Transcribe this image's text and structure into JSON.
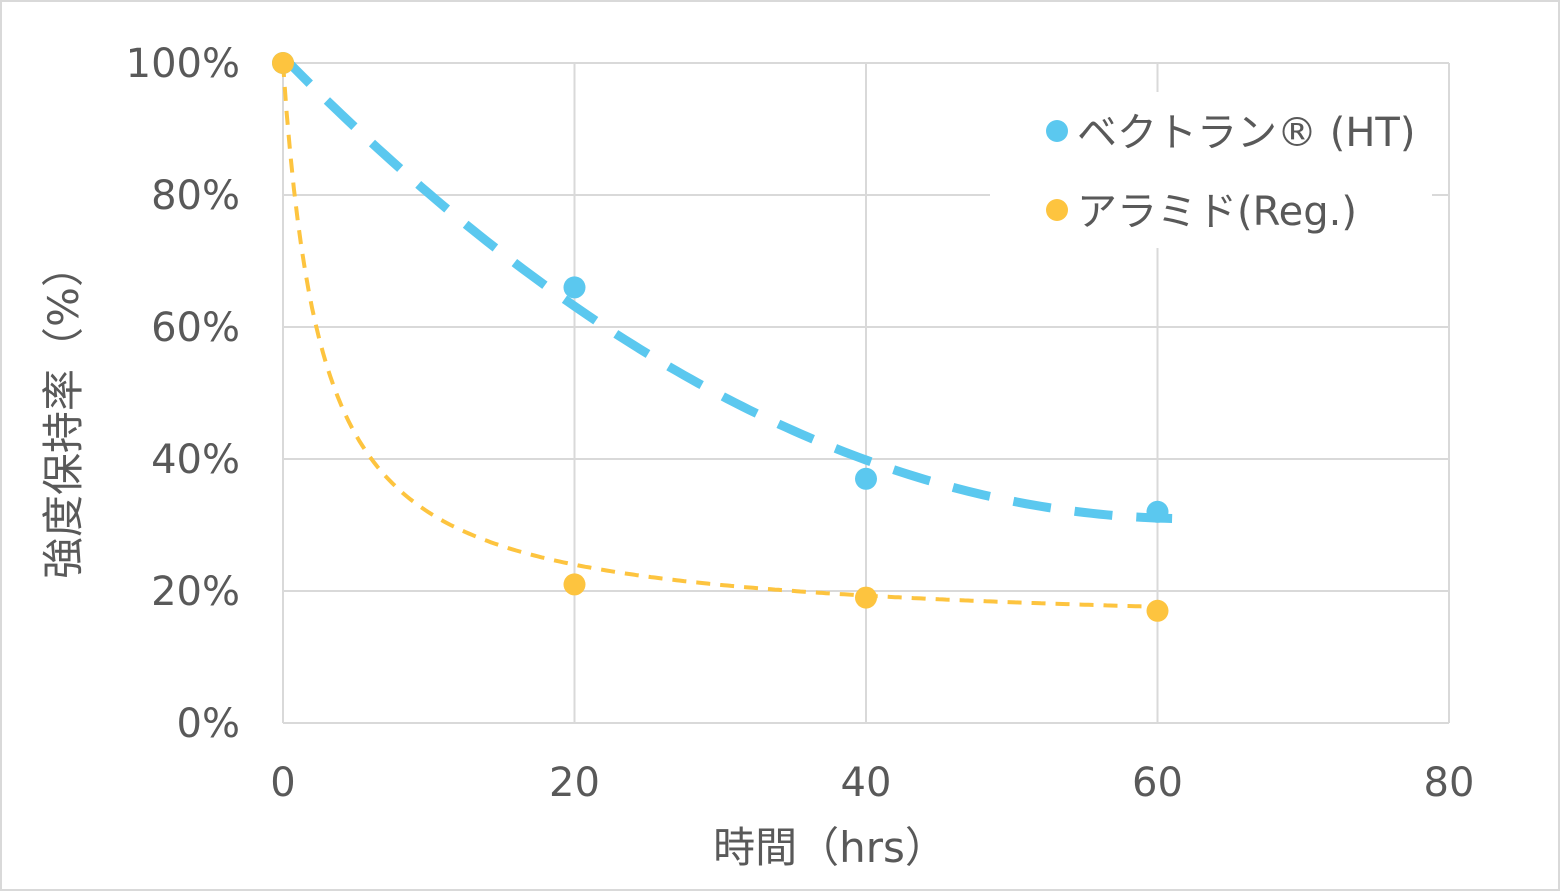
{
  "chart_data": {
    "type": "scatter",
    "title": "",
    "xlabel": "時間（hrs）",
    "ylabel": "強度保持率（%）",
    "xlim": [
      0,
      80
    ],
    "ylim": [
      0,
      100
    ],
    "x_ticks": [
      "0",
      "20",
      "40",
      "60",
      "80"
    ],
    "y_ticks": [
      "0%",
      "20%",
      "40%",
      "60%",
      "80%",
      "100%"
    ],
    "grid": true,
    "legend_position": "top-right",
    "series": [
      {
        "name": "ベクトラン® (HT)",
        "color": "#5bc8ef",
        "x": [
          0,
          20,
          40,
          60
        ],
        "y": [
          100,
          66,
          37,
          32
        ],
        "trendline": "dashed"
      },
      {
        "name": "アラミド(Reg.)",
        "color": "#fdc43f",
        "x": [
          0,
          20,
          40,
          60
        ],
        "y": [
          100,
          21,
          19,
          17
        ],
        "trendline": "dashed"
      }
    ]
  }
}
